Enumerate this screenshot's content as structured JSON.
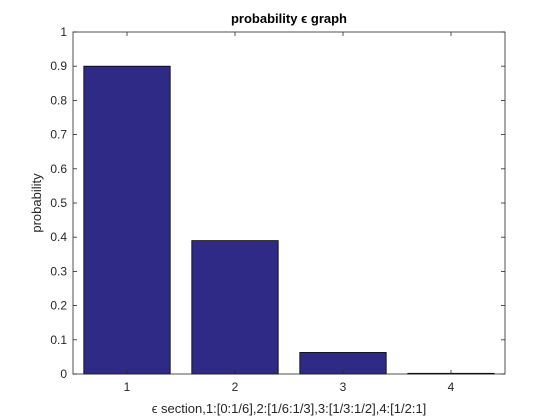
{
  "chart_data": {
    "type": "bar",
    "title": "probability ϵ graph",
    "xlabel": "ϵ section,1:[0:1/6],2:[1/6:1/3],3:[1/3:1/2],4:[1/2:1]",
    "ylabel": "probability",
    "categories": [
      "1",
      "2",
      "3",
      "4"
    ],
    "values": [
      0.9,
      0.39,
      0.063,
      0.002
    ],
    "ylim": [
      0,
      1
    ],
    "yticks": [
      "0",
      "0.1",
      "0.2",
      "0.3",
      "0.4",
      "0.5",
      "0.6",
      "0.7",
      "0.8",
      "0.9",
      "1"
    ],
    "grid": false,
    "legend": "none",
    "bar_color": "#2e2a85",
    "bar_edge_color": "#000000"
  }
}
